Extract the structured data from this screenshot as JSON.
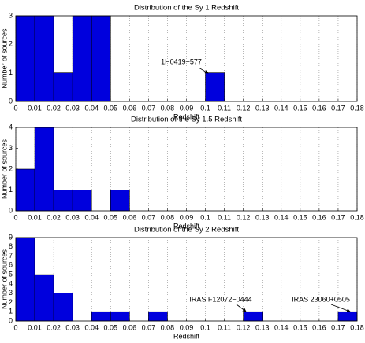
{
  "chart_data": [
    {
      "type": "histogram",
      "title": "Distribution of the Sy 1 Redshift",
      "xlabel": "Redshift",
      "ylabel": "Number of sources",
      "bins": [
        0,
        0.01,
        0.02,
        0.03,
        0.04,
        0.05,
        0.06,
        0.07,
        0.08,
        0.09,
        0.1,
        0.11,
        0.12,
        0.13,
        0.14,
        0.15,
        0.16,
        0.17,
        0.18
      ],
      "values": [
        3,
        3,
        1,
        3,
        3,
        0,
        0,
        0,
        0,
        0,
        1,
        0,
        0,
        0,
        0,
        0,
        0,
        0
      ],
      "color": "#0000dd",
      "xlim": [
        0,
        0.18
      ],
      "ylim": [
        0,
        3
      ],
      "xticks": [
        0,
        0.01,
        0.02,
        0.03,
        0.04,
        0.05,
        0.06,
        0.07,
        0.08,
        0.09,
        0.1,
        0.11,
        0.12,
        0.13,
        0.14,
        0.15,
        0.16,
        0.17,
        0.18
      ],
      "yticks": [
        0,
        1,
        2,
        3
      ],
      "grid": true,
      "annotations": [
        {
          "text": "1H0419−577"
        }
      ]
    },
    {
      "type": "histogram",
      "title": "Distribution of the Sy 1.5 Redshift",
      "xlabel": "Redshift",
      "ylabel": "Number of sources",
      "bins": [
        0,
        0.01,
        0.02,
        0.03,
        0.04,
        0.05,
        0.06,
        0.07,
        0.08,
        0.09,
        0.1,
        0.11,
        0.12,
        0.13,
        0.14,
        0.15,
        0.16,
        0.17,
        0.18
      ],
      "values": [
        2,
        4,
        1,
        1,
        0,
        1,
        0,
        0,
        0,
        0,
        0,
        0,
        0,
        0,
        0,
        0,
        0,
        0
      ],
      "color": "#0000dd",
      "xlim": [
        0,
        0.18
      ],
      "ylim": [
        0,
        4
      ],
      "xticks": [
        0,
        0.01,
        0.02,
        0.03,
        0.04,
        0.05,
        0.06,
        0.07,
        0.08,
        0.09,
        0.1,
        0.11,
        0.12,
        0.13,
        0.14,
        0.15,
        0.16,
        0.17,
        0.18
      ],
      "yticks": [
        0,
        1,
        2,
        3,
        4
      ],
      "grid": true
    },
    {
      "type": "histogram",
      "title": "Distribution of the Sy 2 Redshift",
      "xlabel": "Redshift",
      "ylabel": "Number of sources",
      "bins": [
        0,
        0.01,
        0.02,
        0.03,
        0.04,
        0.05,
        0.06,
        0.07,
        0.08,
        0.09,
        0.1,
        0.11,
        0.12,
        0.13,
        0.14,
        0.15,
        0.16,
        0.17,
        0.18
      ],
      "values": [
        9,
        5,
        3,
        0,
        1,
        1,
        0,
        1,
        0,
        0,
        0,
        0,
        1,
        0,
        0,
        0,
        0,
        1
      ],
      "color": "#0000dd",
      "xlim": [
        0,
        0.18
      ],
      "ylim": [
        0,
        9
      ],
      "xticks": [
        0,
        0.01,
        0.02,
        0.03,
        0.04,
        0.05,
        0.06,
        0.07,
        0.08,
        0.09,
        0.1,
        0.11,
        0.12,
        0.13,
        0.14,
        0.15,
        0.16,
        0.17,
        0.18
      ],
      "yticks": [
        0,
        1,
        2,
        3,
        4,
        5,
        6,
        7,
        8,
        9
      ],
      "grid": true,
      "annotations": [
        {
          "text": "IRAS F12072−0444"
        },
        {
          "text": "IRAS 23060+0505"
        }
      ]
    }
  ]
}
